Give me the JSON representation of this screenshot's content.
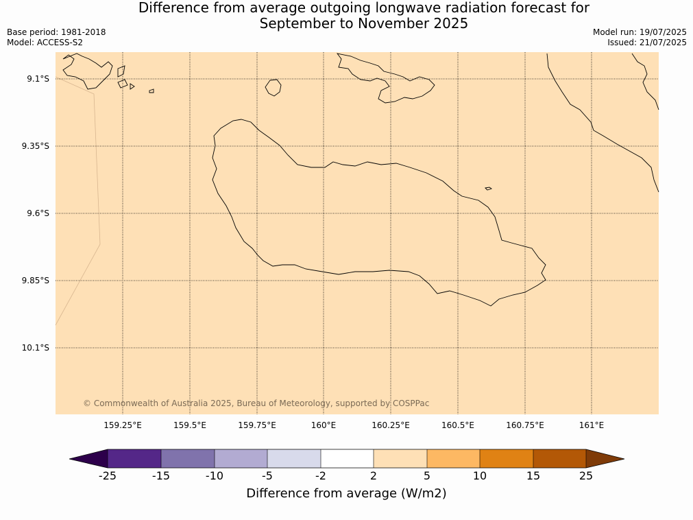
{
  "title_line1": "Difference from average outgoing longwave radiation forecast for",
  "title_line2": "September to November 2025",
  "base_period": "Base period: 1981-2018",
  "model": "Model: ACCESS-S2",
  "model_run": "Model run: 19/07/2025",
  "issued": "Issued: 21/07/2025",
  "lat_labels": [
    "9.1°S",
    "9.35°S",
    "9.6°S",
    "9.85°S",
    "10.1°S"
  ],
  "lon_labels": [
    "159.25°E",
    "159.5°E",
    "159.75°E",
    "160°E",
    "160.25°E",
    "160.5°E",
    "160.75°E",
    "161°E"
  ],
  "map_fill_category": "2 to 5",
  "copyright": "© Commonwealth of Australia 2025, Bureau of Meteorology, supported by COSPPac",
  "colorbar": {
    "title": "Difference from average (W/m2)",
    "tick_labels": [
      "-25",
      "-15",
      "-10",
      "-5",
      "-2",
      "2",
      "5",
      "10",
      "15",
      "25"
    ],
    "colors": [
      "#2d004b",
      "#542788",
      "#8073ac",
      "#b2abd2",
      "#d8daeb",
      "#ffffff",
      "#fee0b6",
      "#fdb863",
      "#e08214",
      "#b35806",
      "#7f3b08"
    ]
  }
}
